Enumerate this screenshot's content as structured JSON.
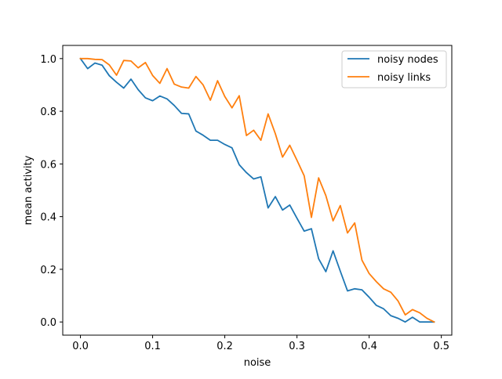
{
  "chart_data": {
    "type": "line",
    "title": "",
    "xlabel": "noise",
    "ylabel": "mean activity",
    "xlim": [
      -0.0245,
      0.5145
    ],
    "ylim": [
      -0.05,
      1.05
    ],
    "xticks": [
      0.0,
      0.1,
      0.2,
      0.3,
      0.4,
      0.5
    ],
    "xtick_labels": [
      "0.0",
      "0.1",
      "0.2",
      "0.3",
      "0.4",
      "0.5"
    ],
    "yticks": [
      0.0,
      0.2,
      0.4,
      0.6,
      0.8,
      1.0
    ],
    "ytick_labels": [
      "0.0",
      "0.2",
      "0.4",
      "0.6",
      "0.8",
      "1.0"
    ],
    "grid": false,
    "legend_position": "top-right",
    "x": [
      0.0,
      0.01,
      0.02,
      0.03,
      0.04,
      0.05,
      0.06,
      0.07,
      0.08,
      0.09,
      0.1,
      0.11,
      0.12,
      0.13,
      0.14,
      0.15,
      0.16,
      0.17,
      0.18,
      0.19,
      0.2,
      0.21,
      0.22,
      0.23,
      0.24,
      0.25,
      0.26,
      0.27,
      0.28,
      0.29,
      0.3,
      0.31,
      0.32,
      0.33,
      0.34,
      0.35,
      0.36,
      0.37,
      0.38,
      0.39,
      0.4,
      0.41,
      0.42,
      0.43,
      0.44,
      0.45,
      0.46,
      0.47,
      0.48,
      0.49
    ],
    "series": [
      {
        "name": "noisy nodes",
        "color": "#1f77b4",
        "values": [
          1.0,
          0.962,
          0.983,
          0.975,
          0.935,
          0.91,
          0.888,
          0.922,
          0.882,
          0.851,
          0.84,
          0.858,
          0.847,
          0.822,
          0.792,
          0.79,
          0.725,
          0.709,
          0.69,
          0.69,
          0.674,
          0.661,
          0.597,
          0.567,
          0.543,
          0.551,
          0.433,
          0.476,
          0.425,
          0.444,
          0.394,
          0.345,
          0.354,
          0.24,
          0.191,
          0.27,
          0.193,
          0.118,
          0.126,
          0.122,
          0.094,
          0.063,
          0.05,
          0.024,
          0.014,
          0.0,
          0.018,
          0.0,
          0.0,
          0.0
        ]
      },
      {
        "name": "noisy links",
        "color": "#ff7f0e",
        "values": [
          1.0,
          1.0,
          0.997,
          0.996,
          0.976,
          0.937,
          0.993,
          0.991,
          0.965,
          0.985,
          0.936,
          0.906,
          0.962,
          0.903,
          0.892,
          0.888,
          0.932,
          0.9,
          0.842,
          0.916,
          0.856,
          0.813,
          0.859,
          0.708,
          0.728,
          0.69,
          0.79,
          0.715,
          0.626,
          0.671,
          0.614,
          0.555,
          0.397,
          0.547,
          0.48,
          0.384,
          0.442,
          0.338,
          0.376,
          0.235,
          0.184,
          0.153,
          0.126,
          0.113,
          0.08,
          0.027,
          0.047,
          0.035,
          0.014,
          0.0
        ]
      }
    ]
  }
}
